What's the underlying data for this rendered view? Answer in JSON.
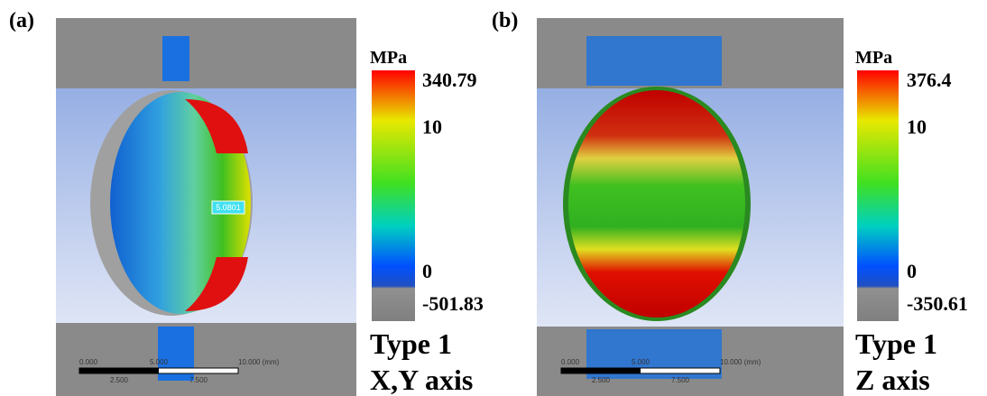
{
  "panels": [
    {
      "label": "(a)",
      "unit": "MPa",
      "legend": {
        "max": "340.79",
        "mid": "10",
        "zero": "0",
        "min": "-501.83"
      },
      "probe": "5.0801",
      "type": "Type 1",
      "axis": "X,Y axis",
      "scale_bar": {
        "top": [
          "0.000",
          "5.000",
          "10.000 (mm)"
        ],
        "bottom": [
          "2.500",
          "7.500"
        ]
      }
    },
    {
      "label": "(b)",
      "unit": "MPa",
      "legend": {
        "max": "376.4",
        "mid": "10",
        "zero": "0",
        "min": "-350.61"
      },
      "type": "Type 1",
      "axis": "Z axis",
      "scale_bar": {
        "top": [
          "0.000",
          "5.000",
          "10.000 (mm)"
        ],
        "bottom": [
          "2.500",
          "7.500"
        ]
      }
    }
  ]
}
